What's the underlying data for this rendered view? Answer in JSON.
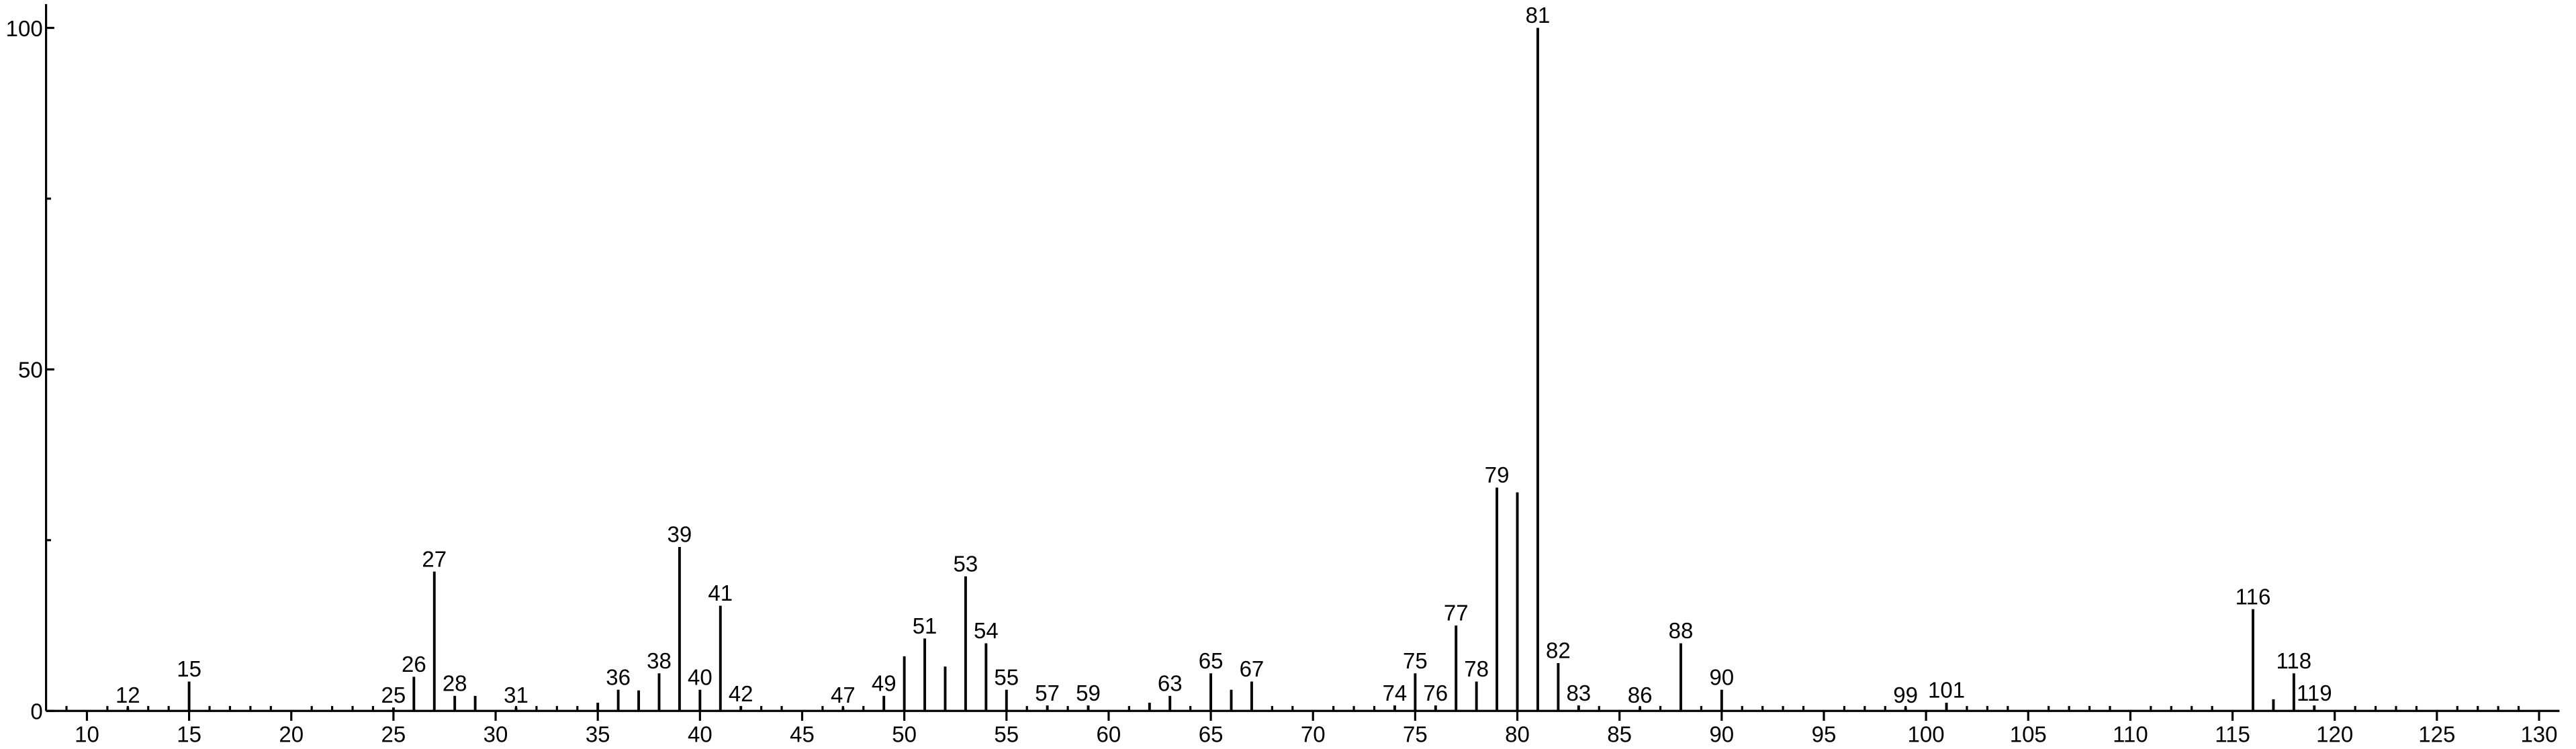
{
  "chart_data": {
    "type": "stick",
    "x": [
      12,
      15,
      25,
      26,
      27,
      28,
      29,
      31,
      35,
      36,
      37,
      38,
      39,
      40,
      41,
      42,
      47,
      49,
      50,
      51,
      52,
      53,
      54,
      55,
      57,
      59,
      62,
      63,
      65,
      66,
      67,
      74,
      75,
      76,
      77,
      78,
      79,
      80,
      81,
      82,
      83,
      86,
      88,
      90,
      99,
      101,
      116,
      117,
      118,
      119
    ],
    "values": [
      0.5,
      4.3,
      0.5,
      5,
      20.4,
      2.2,
      2.2,
      0.5,
      1.2,
      3.1,
      3,
      5.5,
      24,
      3.1,
      15.4,
      0.7,
      0.5,
      2.2,
      8,
      10.6,
      6.5,
      19.7,
      9.9,
      3.1,
      0.8,
      0.8,
      1.2,
      2.2,
      5.5,
      3.1,
      4.3,
      0.8,
      5.5,
      0.8,
      12.5,
      4.3,
      32.7,
      32,
      100,
      7,
      0.8,
      0.5,
      9.9,
      3.1,
      0.5,
      1.2,
      14.9,
      1.7,
      5.5,
      0.8
    ],
    "peak_labels": [
      "12",
      "15",
      "25",
      "26",
      "27",
      "28",
      null,
      "31",
      null,
      "36",
      null,
      "38",
      "39",
      "40",
      "41",
      "42",
      "47",
      "49",
      null,
      "51",
      null,
      "53",
      "54",
      "55",
      "57",
      "59",
      null,
      "63",
      "65",
      null,
      "67",
      "74",
      "75",
      "76",
      "77",
      "78",
      "79",
      null,
      "81",
      "82",
      "83",
      "86",
      "88",
      "90",
      "99",
      "101",
      "116",
      null,
      "118",
      "119"
    ],
    "color": "#000000",
    "xlim": [
      8,
      131
    ],
    "xticks": [
      10,
      15,
      20,
      25,
      30,
      35,
      40,
      45,
      50,
      55,
      60,
      65,
      70,
      75,
      80,
      85,
      90,
      95,
      100,
      105,
      110,
      115,
      120,
      125,
      130
    ],
    "xminorticks": [
      9,
      11,
      12,
      13,
      14,
      16,
      17,
      18,
      19,
      21,
      22,
      23,
      24,
      26,
      27,
      28,
      29,
      31,
      32,
      33,
      34,
      36,
      37,
      38,
      39,
      41,
      42,
      43,
      44,
      46,
      47,
      48,
      49,
      51,
      52,
      53,
      54,
      56,
      57,
      58,
      59,
      61,
      62,
      63,
      64,
      66,
      67,
      68,
      69,
      71,
      72,
      73,
      74,
      76,
      77,
      78,
      79,
      81,
      82,
      83,
      84,
      86,
      87,
      88,
      89,
      91,
      92,
      93,
      94,
      96,
      97,
      98,
      99,
      101,
      102,
      103,
      104,
      106,
      107,
      108,
      109,
      111,
      112,
      113,
      114,
      116,
      117,
      118,
      119,
      121,
      122,
      123,
      124,
      126,
      127,
      128,
      129
    ],
    "ylim": [
      0,
      103
    ],
    "yticks": [
      0,
      50,
      100
    ],
    "yminorticks": [
      25,
      75
    ]
  }
}
